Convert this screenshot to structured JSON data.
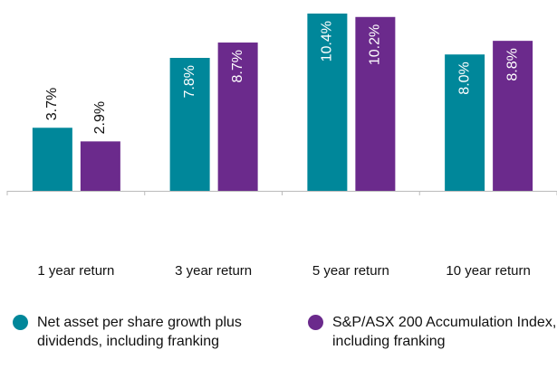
{
  "chart_data": {
    "type": "bar",
    "categories": [
      "1 year return",
      "3 year return",
      "5 year return",
      "10 year return"
    ],
    "series": [
      {
        "name": "Net asset per share growth plus dividends, including franking",
        "color": "#00879a",
        "values": [
          3.7,
          7.8,
          10.4,
          8.0
        ],
        "value_labels": [
          "3.7%",
          "7.8%",
          "10.4%",
          "8.0%"
        ]
      },
      {
        "name": "S&P/ASX 200 Accumulation Index, including franking",
        "color": "#6b2a8c",
        "values": [
          2.9,
          8.7,
          10.2,
          8.8
        ],
        "value_labels": [
          "2.9%",
          "8.7%",
          "10.2%",
          "8.8%"
        ]
      }
    ]
  }
}
